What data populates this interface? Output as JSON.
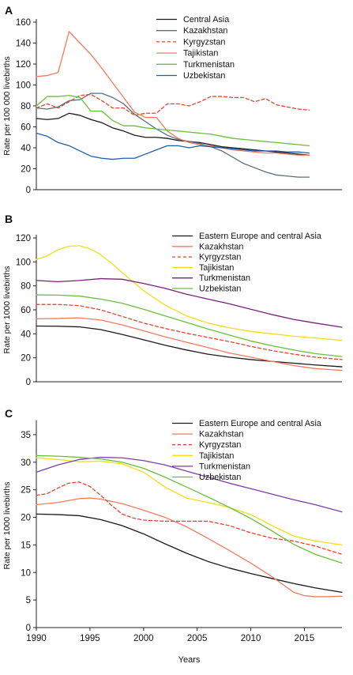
{
  "chart_data": [
    {
      "panel": "A",
      "type": "line",
      "ylabel": "Rate per 100 000 livebirths",
      "xlabel": "",
      "xlim": [
        1990,
        2018
      ],
      "ylim": [
        0,
        160
      ],
      "yticks": [
        0,
        20,
        40,
        60,
        80,
        100,
        120,
        140,
        160
      ],
      "xticks": [],
      "grid": false,
      "legend_position": "top-right",
      "series": [
        {
          "name": "Central Asia",
          "color": "#1a1a1a",
          "dash": false,
          "x": [
            1990,
            1991,
            1992,
            1993,
            1994,
            1995,
            1996,
            1997,
            1998,
            1999,
            2000,
            2001,
            2002,
            2003,
            2004,
            2005,
            2006,
            2007,
            2008,
            2009,
            2010,
            2011,
            2012,
            2013,
            2014,
            2015
          ],
          "y": [
            68,
            67,
            68,
            73,
            71,
            67,
            64,
            59,
            56,
            52,
            50,
            50,
            49,
            47,
            46,
            45,
            43,
            41,
            40,
            39,
            38,
            37,
            36,
            35,
            34,
            33
          ]
        },
        {
          "name": "Kazakhstan",
          "color": "#5b6f7f",
          "dash": false,
          "x": [
            1990,
            1991,
            1992,
            1993,
            1994,
            1995,
            1996,
            1997,
            1998,
            1999,
            2000,
            2001,
            2002,
            2003,
            2004,
            2005,
            2006,
            2007,
            2008,
            2009,
            2010,
            2011,
            2012,
            2013,
            2014,
            2015
          ],
          "y": [
            78,
            77,
            79,
            85,
            86,
            92,
            92,
            88,
            82,
            72,
            65,
            58,
            52,
            48,
            46,
            44,
            41,
            37,
            31,
            25,
            21,
            17,
            14,
            13,
            12,
            12
          ]
        },
        {
          "name": "Kyrgyzstan",
          "color": "#e8432d",
          "dash": true,
          "x": [
            1990,
            1991,
            1992,
            1993,
            1994,
            1995,
            1996,
            1997,
            1998,
            1999,
            2000,
            2001,
            2002,
            2003,
            2004,
            2005,
            2006,
            2007,
            2008,
            2009,
            2010,
            2011,
            2012,
            2013,
            2014,
            2015
          ],
          "y": [
            78,
            82,
            78,
            84,
            90,
            91,
            85,
            78,
            78,
            71,
            73,
            73,
            82,
            82,
            80,
            84,
            89,
            89,
            88,
            88,
            84,
            87,
            81,
            79,
            77,
            76
          ]
        },
        {
          "name": "Tajikistan",
          "color": "#f47a5e",
          "dash": false,
          "x": [
            1990,
            1991,
            1992,
            1993,
            1994,
            1995,
            1996,
            1997,
            1998,
            1999,
            2000,
            2001,
            2002,
            2003,
            2004,
            2005,
            2006,
            2007,
            2008,
            2009,
            2010,
            2011,
            2012,
            2013,
            2014,
            2015
          ],
          "y": [
            108,
            109,
            112,
            151,
            140,
            129,
            116,
            102,
            88,
            74,
            69,
            69,
            56,
            49,
            45,
            43,
            42,
            40,
            38,
            37,
            36,
            35,
            35,
            34,
            33,
            33
          ]
        },
        {
          "name": "Turkmenistan",
          "color": "#6abf3a",
          "dash": false,
          "x": [
            1990,
            1991,
            1992,
            1993,
            1994,
            1995,
            1996,
            1997,
            1998,
            1999,
            2000,
            2001,
            2002,
            2003,
            2004,
            2005,
            2006,
            2007,
            2008,
            2009,
            2010,
            2011,
            2012,
            2013,
            2014,
            2015
          ],
          "y": [
            80,
            89,
            89,
            90,
            88,
            75,
            75,
            66,
            61,
            61,
            59,
            58,
            57,
            56,
            55,
            54,
            53,
            51,
            49,
            48,
            47,
            46,
            45,
            44,
            43,
            42
          ]
        },
        {
          "name": "Uzbekistan",
          "color": "#1f5ea8",
          "dash": false,
          "x": [
            1990,
            1991,
            1992,
            1993,
            1994,
            1995,
            1996,
            1997,
            1998,
            1999,
            2000,
            2001,
            2002,
            2003,
            2004,
            2005,
            2006,
            2007,
            2008,
            2009,
            2010,
            2011,
            2012,
            2013,
            2014,
            2015
          ],
          "y": [
            54,
            51,
            45,
            42,
            37,
            32,
            30,
            29,
            30,
            30,
            34,
            38,
            42,
            42,
            40,
            42,
            41,
            40,
            39,
            38,
            37,
            37,
            37,
            36,
            36,
            35
          ]
        }
      ]
    },
    {
      "panel": "B",
      "type": "line",
      "ylabel": "Rate per 1000 livebirths",
      "xlabel": "",
      "xlim": [
        1990,
        2018.5
      ],
      "ylim": [
        0,
        120
      ],
      "yticks": [
        0,
        20,
        40,
        60,
        80,
        100,
        120
      ],
      "xticks": [],
      "grid": false,
      "legend_position": "top-right",
      "series": [
        {
          "name": "Eastern Europe and central Asia",
          "color": "#1a1a1a",
          "dash": false,
          "x": [
            1990,
            1992,
            1994,
            1996,
            1998,
            2000,
            2002,
            2004,
            2006,
            2008,
            2010,
            2012,
            2014,
            2016,
            2018.5
          ],
          "y": [
            46.5,
            46.3,
            45.8,
            43.5,
            39.5,
            35,
            30.5,
            26.5,
            23,
            20.5,
            18.5,
            17,
            15.5,
            14,
            12.5
          ]
        },
        {
          "name": "Kazakhstan",
          "color": "#f47a5e",
          "dash": false,
          "x": [
            1990,
            1992,
            1994,
            1996,
            1998,
            2000,
            2002,
            2004,
            2006,
            2008,
            2010,
            2012,
            2014,
            2016,
            2018.5
          ],
          "y": [
            52.5,
            52.8,
            53.3,
            51.5,
            47.5,
            42.5,
            37.5,
            33,
            28.5,
            24,
            20.5,
            17,
            13.5,
            11,
            9.5
          ]
        },
        {
          "name": "Kyrgyzstan",
          "color": "#e8432d",
          "dash": true,
          "x": [
            1990,
            1992,
            1994,
            1996,
            1998,
            2000,
            2002,
            2004,
            2006,
            2008,
            2010,
            2012,
            2014,
            2016,
            2018.5
          ],
          "y": [
            64.5,
            64.5,
            63.5,
            60,
            54.5,
            49,
            44.5,
            40.5,
            37,
            33.5,
            29.5,
            26,
            23,
            20.5,
            18.5
          ]
        },
        {
          "name": "Tajikistan",
          "color": "#f5dc18",
          "dash": false,
          "x": [
            1990,
            1991,
            1992,
            1993,
            1994,
            1995,
            1996,
            1997,
            1998,
            2000,
            2002,
            2004,
            2006,
            2008,
            2010,
            2012,
            2014,
            2016,
            2018.5
          ],
          "y": [
            102,
            105,
            110,
            113,
            113.5,
            111,
            106,
            99,
            91,
            76,
            64,
            55,
            49,
            45,
            42,
            40,
            38,
            36.5,
            34.5
          ]
        },
        {
          "name": "Turkmenistan",
          "color": "#7b1f7a",
          "dash": false,
          "x": [
            1990,
            1992,
            1994,
            1996,
            1998,
            2000,
            2002,
            2004,
            2006,
            2008,
            2010,
            2012,
            2014,
            2016,
            2018.5
          ],
          "y": [
            84.5,
            83.5,
            84.5,
            86,
            85.5,
            82,
            78,
            73,
            69,
            65,
            60.5,
            56,
            52,
            49,
            45.5
          ]
        },
        {
          "name": "Uzbekistan",
          "color": "#6abf3a",
          "dash": false,
          "x": [
            1990,
            1992,
            1994,
            1996,
            1998,
            2000,
            2002,
            2004,
            2006,
            2008,
            2010,
            2012,
            2014,
            2016,
            2018.5
          ],
          "y": [
            72.5,
            72.3,
            71.5,
            69,
            65.5,
            60.5,
            55,
            49.5,
            44,
            39,
            34,
            30,
            26.5,
            23.5,
            21
          ]
        }
      ]
    },
    {
      "panel": "C",
      "type": "line",
      "ylabel": "Rate per 1000 livebirths",
      "xlabel": "Years",
      "xlim": [
        1990,
        2018.5
      ],
      "ylim": [
        0,
        37
      ],
      "yticks": [
        0,
        5,
        10,
        15,
        20,
        25,
        30,
        35
      ],
      "xticks": [
        1990,
        1995,
        2000,
        2005,
        2010,
        2015
      ],
      "grid": false,
      "legend_position": "top-right",
      "series": [
        {
          "name": "Eastern Europe and central Asia",
          "color": "#1a1a1a",
          "dash": false,
          "x": [
            1990,
            1992,
            1994,
            1996,
            1998,
            2000,
            2002,
            2004,
            2006,
            2008,
            2010,
            2012,
            2014,
            2016,
            2018.5
          ],
          "y": [
            20.6,
            20.5,
            20.3,
            19.6,
            18.5,
            17,
            15.2,
            13.5,
            12,
            10.8,
            9.8,
            8.9,
            8,
            7.2,
            6.4
          ]
        },
        {
          "name": "Kazakhstan",
          "color": "#f47a5e",
          "dash": false,
          "x": [
            1990,
            1992,
            1994,
            1995,
            1996,
            1998,
            2000,
            2002,
            2004,
            2006,
            2008,
            2010,
            2012,
            2013,
            2014,
            2015,
            2016,
            2017,
            2018.5
          ],
          "y": [
            22.3,
            22.7,
            23.4,
            23.5,
            23.3,
            22.5,
            21.3,
            20,
            18.3,
            16.2,
            14,
            11.7,
            9.2,
            7.8,
            6.4,
            5.8,
            5.6,
            5.6,
            5.7
          ]
        },
        {
          "name": "Kyrgyzstan",
          "color": "#e8432d",
          "dash": true,
          "x": [
            1990,
            1991,
            1992,
            1993,
            1994,
            1995,
            1996,
            1997,
            1998,
            1999,
            2000,
            2002,
            2004,
            2006,
            2008,
            2010,
            2012,
            2014,
            2016,
            2018.5
          ],
          "y": [
            24,
            24.3,
            25.3,
            26.2,
            26.4,
            25.6,
            24,
            22.2,
            20.6,
            19.9,
            19.5,
            19.3,
            19.3,
            19.3,
            18.5,
            17.2,
            16.2,
            15.7,
            14.8,
            13.3
          ]
        },
        {
          "name": "Tajikistan",
          "color": "#f5dc18",
          "dash": false,
          "x": [
            1990,
            1992,
            1994,
            1996,
            1998,
            2000,
            2002,
            2004,
            2006,
            2008,
            2010,
            2012,
            2014,
            2016,
            2018.5
          ],
          "y": [
            30.8,
            30.5,
            30.1,
            30.2,
            29.7,
            28.2,
            25.5,
            23.5,
            22.7,
            21.8,
            20.5,
            18.5,
            16.6,
            15.7,
            15
          ]
        },
        {
          "name": "Turkmenistan",
          "color": "#7b3fa6",
          "dash": false,
          "x": [
            1990,
            1992,
            1994,
            1996,
            1998,
            2000,
            2002,
            2004,
            2006,
            2008,
            2010,
            2012,
            2014,
            2016,
            2018.5
          ],
          "y": [
            28.2,
            29.5,
            30.5,
            30.9,
            30.8,
            30.3,
            29.5,
            28.4,
            27.3,
            26.2,
            25.2,
            24.2,
            23.2,
            22.3,
            21
          ]
        },
        {
          "name": "Uzbekistan",
          "color": "#6abf3a",
          "dash": false,
          "x": [
            1990,
            1992,
            1994,
            1996,
            1998,
            2000,
            2002,
            2004,
            2006,
            2008,
            2010,
            2012,
            2014,
            2016,
            2018.5
          ],
          "y": [
            31.2,
            31.1,
            30.9,
            30.6,
            30,
            28.9,
            27.3,
            25.5,
            23.7,
            21.8,
            19.8,
            17.5,
            15.1,
            13.3,
            11.7
          ]
        }
      ]
    }
  ]
}
